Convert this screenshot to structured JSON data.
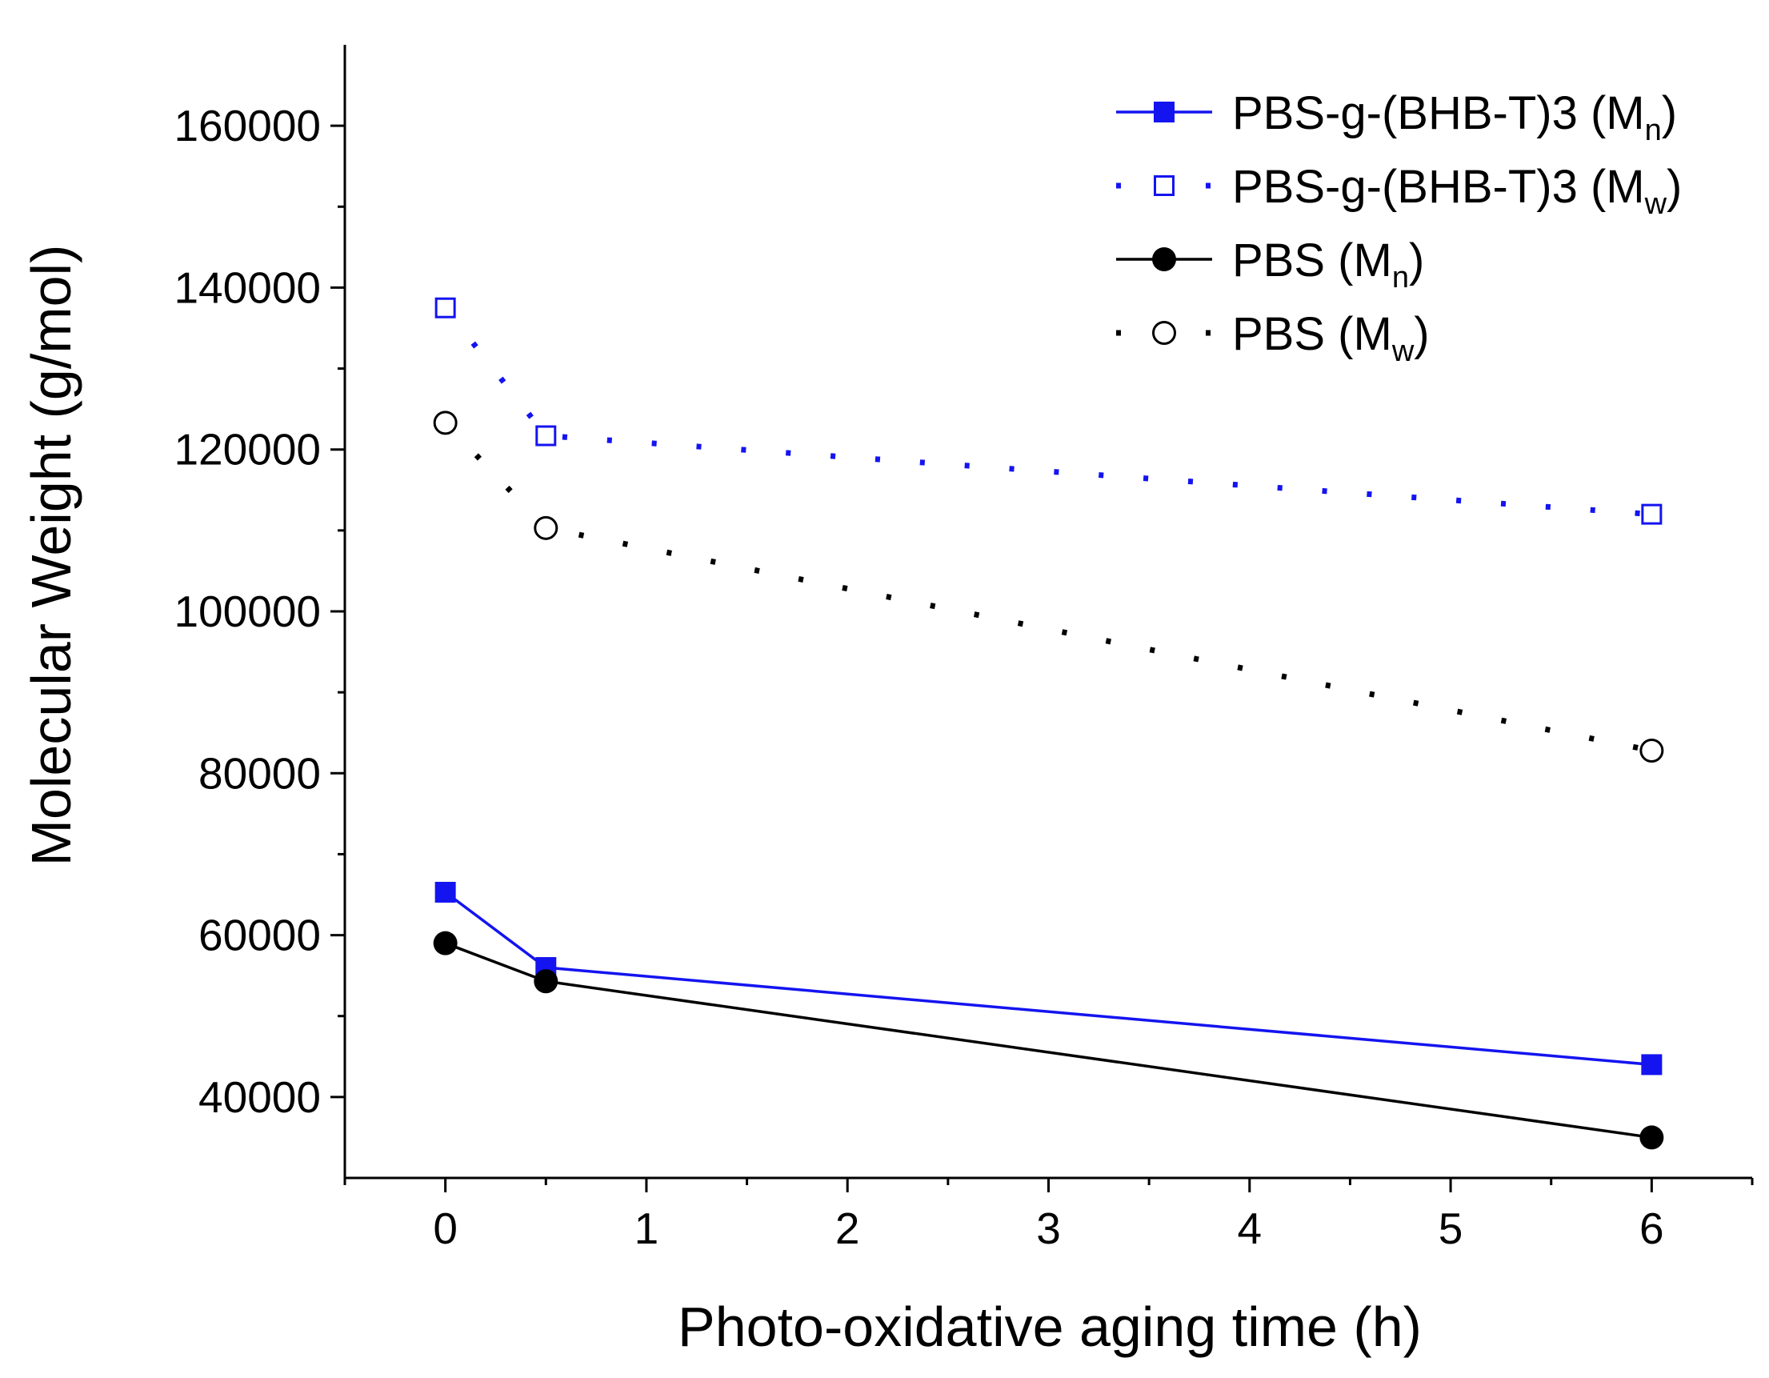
{
  "colors": {
    "blue": "#1414f0",
    "black": "#000000",
    "axis": "#000000",
    "background": "#ffffff"
  },
  "chart_data": {
    "type": "line",
    "title": "",
    "xlabel": "Photo-oxidative aging time (h)",
    "ylabel": "Molecular Weight (g/mol)",
    "xlim": [
      -0.5,
      6.5
    ],
    "ylim": [
      30000,
      170000
    ],
    "x_ticks": [
      0,
      1,
      2,
      3,
      4,
      5,
      6
    ],
    "x_tick_labels": [
      "0",
      "1",
      "2",
      "3",
      "4",
      "5",
      "6"
    ],
    "x_minor_step": 0.5,
    "y_ticks": [
      40000,
      60000,
      80000,
      100000,
      120000,
      140000,
      160000
    ],
    "y_tick_labels": [
      "40000",
      "60000",
      "80000",
      "100000",
      "120000",
      "140000",
      "160000"
    ],
    "y_minor_step": 10000,
    "grid": false,
    "legend_position": "top-right",
    "series": [
      {
        "name": "PBS-g-(BHB-T)3 (Mn)",
        "legend_main": "PBS-g-(BHB-T)3 (M",
        "legend_sub": "n",
        "legend_close": ")",
        "color": "#1414f0",
        "marker": "filled-square",
        "line": "solid",
        "x": [
          0,
          0.5,
          6
        ],
        "values": [
          65300,
          56000,
          44000
        ]
      },
      {
        "name": "PBS-g-(BHB-T)3 (Mw)",
        "legend_main": "PBS-g-(BHB-T)3 (M",
        "legend_sub": "w",
        "legend_close": ")",
        "color": "#1414f0",
        "marker": "open-square",
        "line": "dotted",
        "x": [
          0,
          0.5,
          6
        ],
        "values": [
          137500,
          121700,
          112000
        ]
      },
      {
        "name": "PBS (Mn)",
        "legend_main": "PBS (M",
        "legend_sub": "n",
        "legend_close": ")",
        "color": "#000000",
        "marker": "filled-circle",
        "line": "solid",
        "x": [
          0,
          0.5,
          6
        ],
        "values": [
          59000,
          54300,
          35000
        ]
      },
      {
        "name": "PBS (Mw)",
        "legend_main": "PBS (M",
        "legend_sub": "w",
        "legend_close": ")",
        "color": "#000000",
        "marker": "open-circle",
        "line": "dotted",
        "x": [
          0,
          0.5,
          6
        ],
        "values": [
          123300,
          110300,
          82800
        ]
      }
    ]
  }
}
